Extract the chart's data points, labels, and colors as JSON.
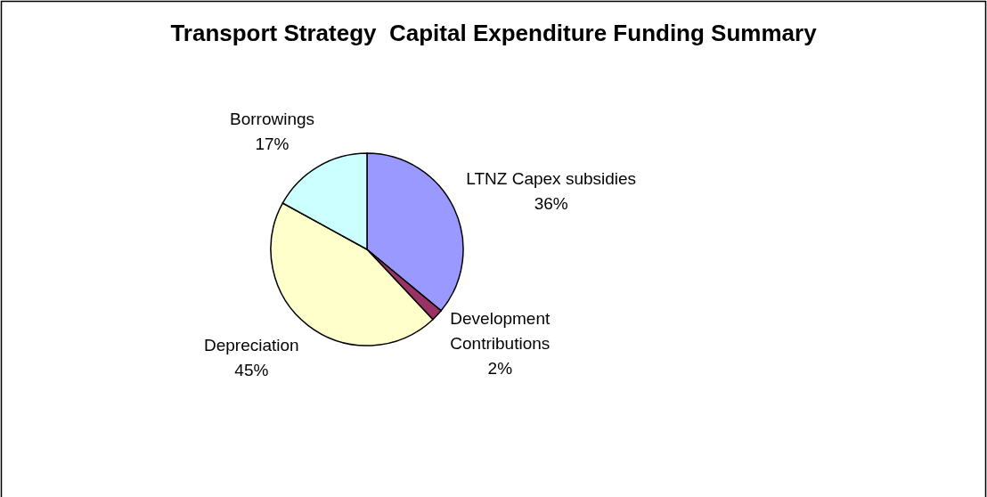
{
  "chart_data": {
    "type": "pie",
    "title": "Transport Strategy  Capital Expenditure Funding Summary",
    "categories": [
      "LTNZ Capex subsidies",
      "Development Contributions",
      "Depreciation",
      "Borrowings"
    ],
    "values": [
      36,
      2,
      45,
      17
    ],
    "colors": [
      "#9999ff",
      "#993366",
      "#ffffcc",
      "#ccffff"
    ],
    "value_labels": [
      "36%",
      "2%",
      "45%",
      "17%"
    ]
  }
}
